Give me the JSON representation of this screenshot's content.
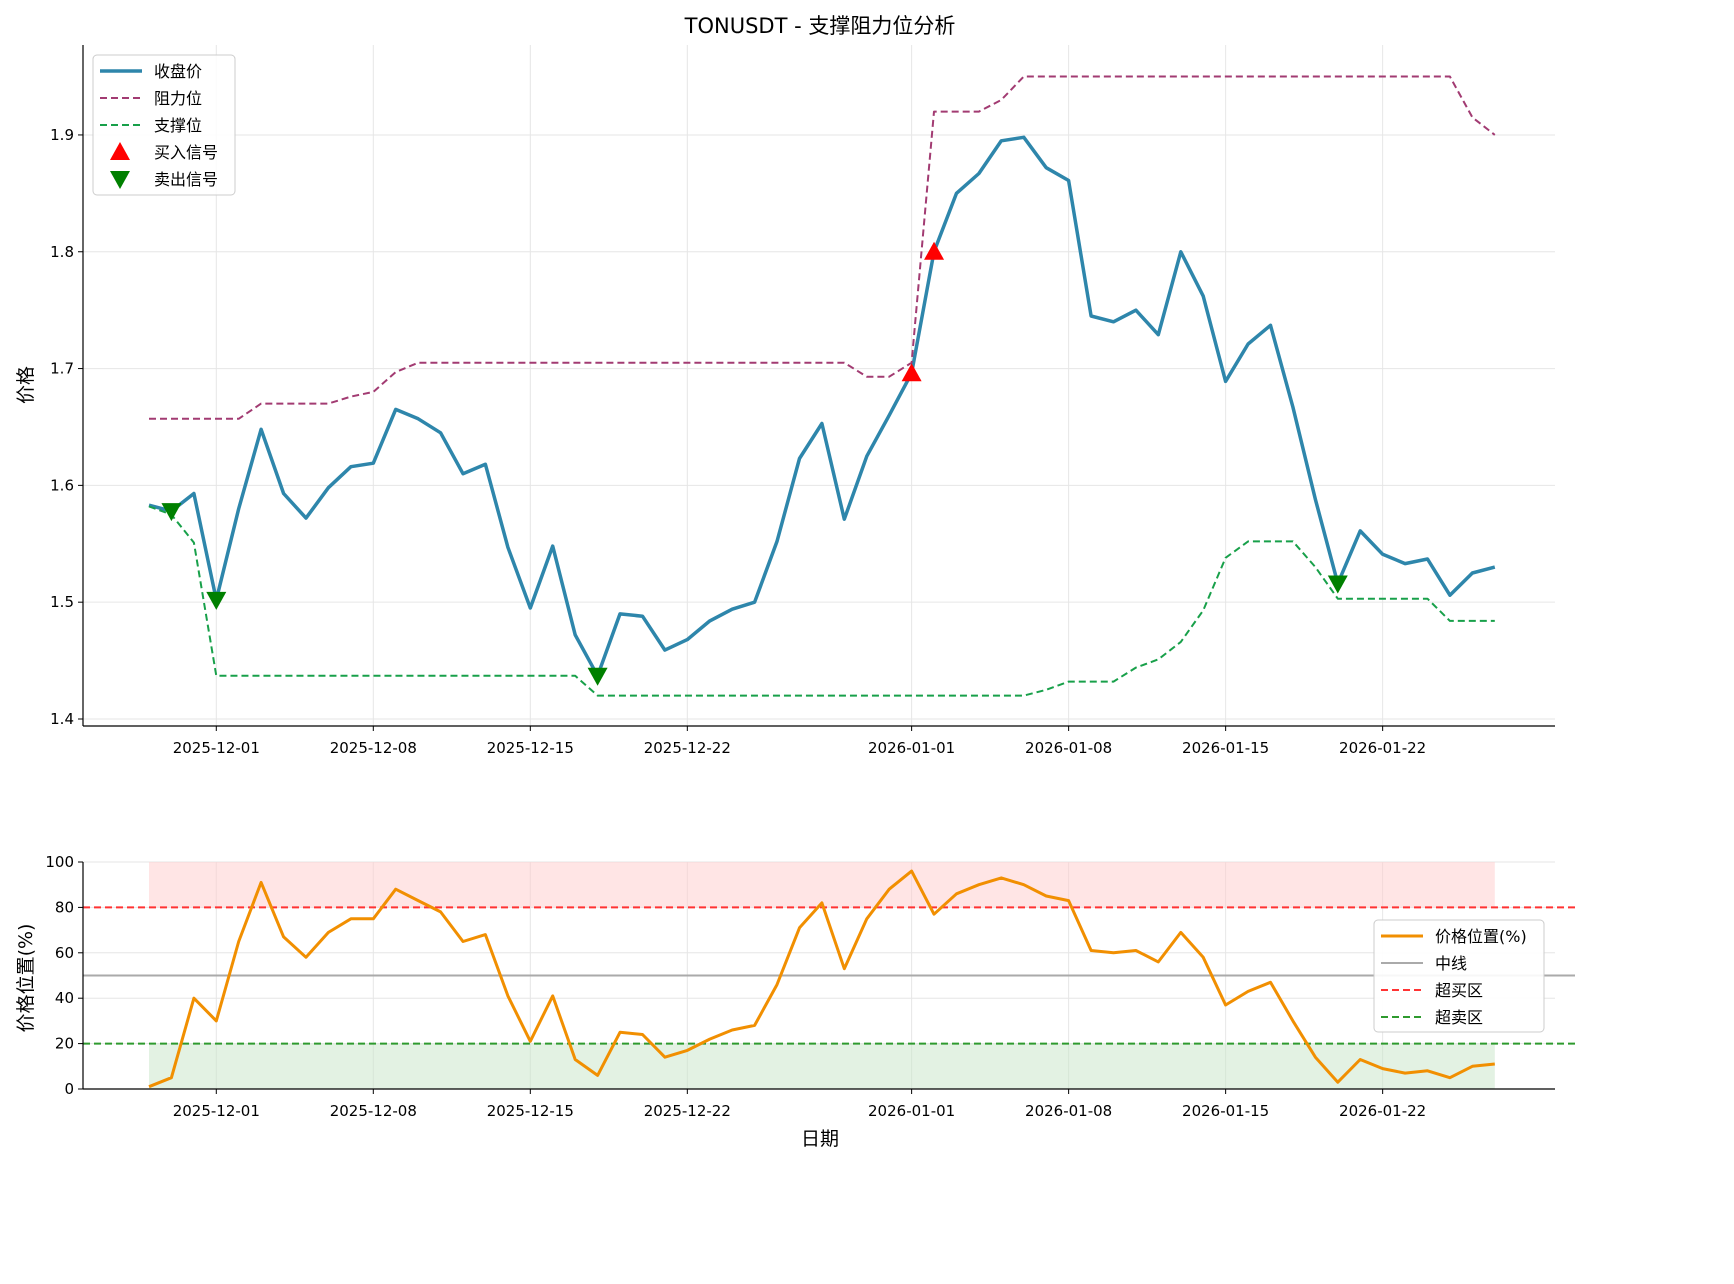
{
  "chart_data": [
    {
      "type": "line",
      "title": "TONUSDT - 支撑阻力位分析",
      "ylabel": "价格",
      "xlabel": "",
      "ylim": [
        1.394,
        1.977
      ],
      "start_date": "2025-11-28",
      "x_ticks": [
        {
          "day": 3,
          "label": "2025-12-01"
        },
        {
          "day": 10,
          "label": "2025-12-08"
        },
        {
          "day": 17,
          "label": "2025-12-15"
        },
        {
          "day": 24,
          "label": "2025-12-22"
        },
        {
          "day": 34,
          "label": "2026-01-01"
        },
        {
          "day": 41,
          "label": "2026-01-08"
        },
        {
          "day": 48,
          "label": "2026-01-15"
        },
        {
          "day": 55,
          "label": "2026-01-22"
        }
      ],
      "y_ticks": [
        "1.4",
        "1.5",
        "1.6",
        "1.7",
        "1.8",
        "1.9"
      ],
      "grid": true,
      "legend_position": "top-left",
      "series": [
        {
          "name": "收盘价",
          "color": "#2e86ab",
          "style": "solid",
          "values": [
            1.583,
            1.578,
            1.593,
            1.502,
            1.58,
            1.648,
            1.593,
            1.572,
            1.598,
            1.616,
            1.619,
            1.665,
            1.657,
            1.645,
            1.61,
            1.618,
            1.547,
            1.495,
            1.548,
            1.472,
            1.437,
            1.49,
            1.488,
            1.459,
            1.468,
            1.484,
            1.494,
            1.5,
            1.552,
            1.623,
            1.653,
            1.571,
            1.625,
            1.66,
            1.696,
            1.8,
            1.85,
            1.867,
            1.895,
            1.898,
            1.872,
            1.861,
            1.745,
            1.74,
            1.75,
            1.729,
            1.8,
            1.762,
            1.689,
            1.721,
            1.737,
            1.667,
            1.588,
            1.516,
            1.561,
            1.541,
            1.533,
            1.537,
            1.506,
            1.525,
            1.53
          ]
        },
        {
          "name": "阻力位",
          "color": "#a23b72",
          "style": "dashed",
          "values": [
            1.657,
            1.657,
            1.657,
            1.657,
            1.657,
            1.67,
            1.67,
            1.67,
            1.67,
            1.676,
            1.68,
            1.697,
            1.705,
            1.705,
            1.705,
            1.705,
            1.705,
            1.705,
            1.705,
            1.705,
            1.705,
            1.705,
            1.705,
            1.705,
            1.705,
            1.705,
            1.705,
            1.705,
            1.705,
            1.705,
            1.705,
            1.705,
            1.693,
            1.693,
            1.705,
            1.92,
            1.92,
            1.92,
            1.93,
            1.95,
            1.95,
            1.95,
            1.95,
            1.95,
            1.95,
            1.95,
            1.95,
            1.95,
            1.95,
            1.95,
            1.95,
            1.95,
            1.95,
            1.95,
            1.95,
            1.95,
            1.95,
            1.95,
            1.95,
            1.915,
            1.9
          ]
        },
        {
          "name": "支撑位",
          "color": "#18a04a",
          "style": "dashed",
          "values": [
            1.582,
            1.575,
            1.551,
            1.437,
            1.437,
            1.437,
            1.437,
            1.437,
            1.437,
            1.437,
            1.437,
            1.437,
            1.437,
            1.437,
            1.437,
            1.437,
            1.437,
            1.437,
            1.437,
            1.437,
            1.42,
            1.42,
            1.42,
            1.42,
            1.42,
            1.42,
            1.42,
            1.42,
            1.42,
            1.42,
            1.42,
            1.42,
            1.42,
            1.42,
            1.42,
            1.42,
            1.42,
            1.42,
            1.42,
            1.42,
            1.425,
            1.432,
            1.432,
            1.432,
            1.444,
            1.451,
            1.466,
            1.493,
            1.538,
            1.552,
            1.552,
            1.552,
            1.53,
            1.503,
            1.503,
            1.503,
            1.503,
            1.503,
            1.484,
            1.484,
            1.484
          ]
        }
      ],
      "markers": [
        {
          "name": "买入信号",
          "color": "#ff0000",
          "shape": "triangle-up",
          "points": [
            {
              "day": 34,
              "value": 1.696
            },
            {
              "day": 35,
              "value": 1.8
            }
          ]
        },
        {
          "name": "卖出信号",
          "color": "#008000",
          "shape": "triangle-down",
          "points": [
            {
              "day": 1,
              "value": 1.578
            },
            {
              "day": 3,
              "value": 1.502
            },
            {
              "day": 20,
              "value": 1.437
            },
            {
              "day": 53,
              "value": 1.516
            }
          ]
        }
      ]
    },
    {
      "type": "line",
      "ylabel": "价格位置(%)",
      "xlabel": "日期",
      "ylim": [
        0,
        100
      ],
      "y_ticks": [
        "0",
        "20",
        "40",
        "60",
        "80",
        "100"
      ],
      "grid": true,
      "legend_position": "center-right",
      "series": [
        {
          "name": "价格位置(%)",
          "color": "#f18f01",
          "style": "solid",
          "values": [
            1,
            5,
            40,
            30,
            65,
            91,
            67,
            58,
            69,
            75,
            75,
            88,
            83,
            78,
            65,
            68,
            41,
            21,
            41,
            13,
            6,
            25,
            24,
            14,
            17,
            22,
            26,
            28,
            46,
            71,
            82,
            53,
            75,
            88,
            96,
            77,
            86,
            90,
            93,
            90,
            85,
            83,
            61,
            60,
            61,
            56,
            69,
            58,
            37,
            43,
            47,
            30,
            14,
            3,
            13,
            9,
            7,
            8,
            5,
            10,
            11
          ]
        }
      ],
      "hlines": [
        {
          "name": "中线",
          "value": 50,
          "color": "#aaaaaa",
          "style": "solid"
        },
        {
          "name": "超买区",
          "value": 80,
          "color": "#ff3333",
          "style": "dashed"
        },
        {
          "name": "超卖区",
          "value": 20,
          "color": "#2e9a2e",
          "style": "dashed"
        }
      ],
      "bands": [
        {
          "from": 80,
          "to": 100,
          "color": "#ffcccc"
        },
        {
          "from": 0,
          "to": 20,
          "color": "#c8e6c8"
        }
      ]
    }
  ]
}
